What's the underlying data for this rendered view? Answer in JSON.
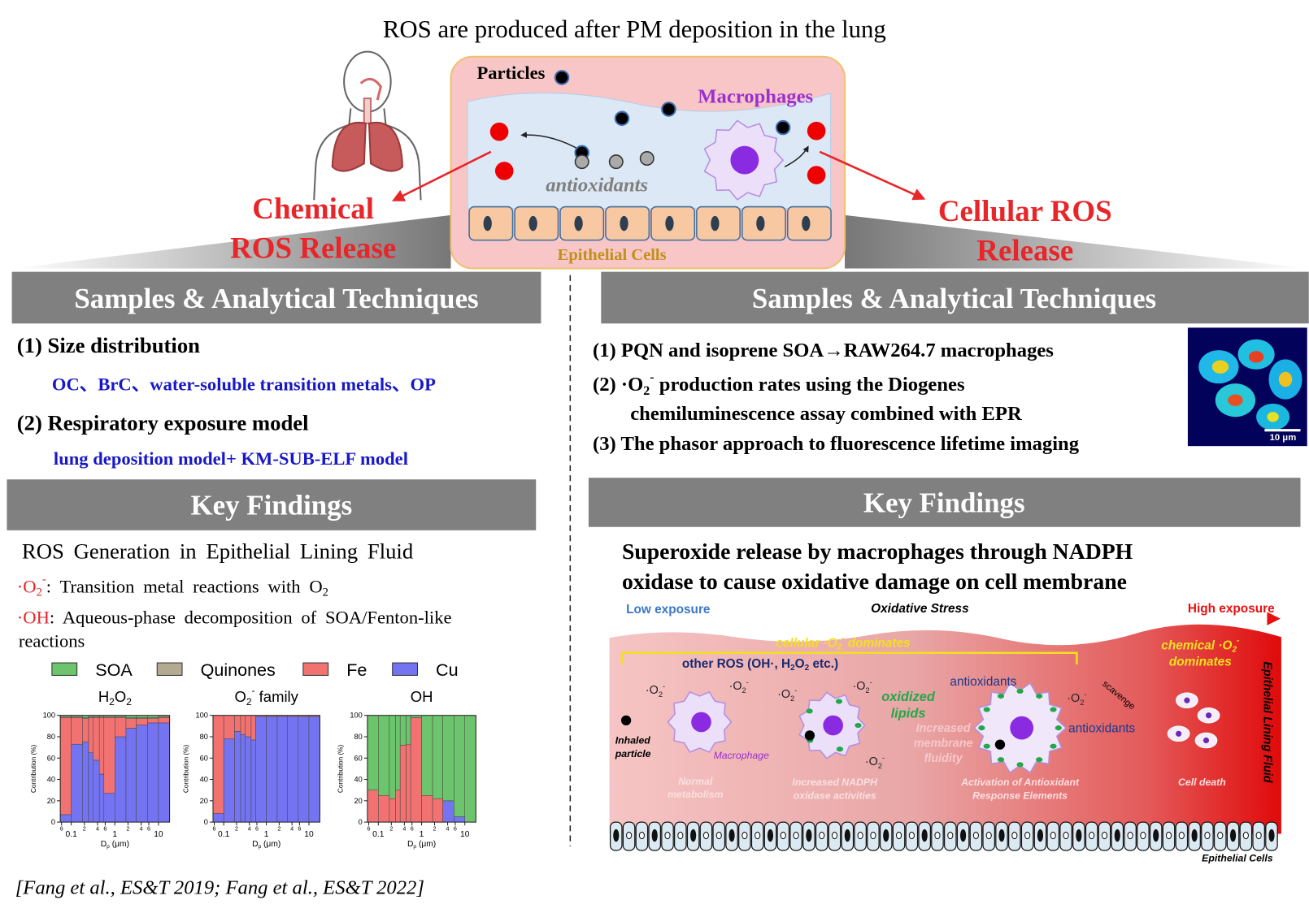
{
  "title": "ROS are produced after PM deposition in the lung",
  "schematic": {
    "particles": "Particles",
    "macrophages": "Macrophages",
    "antioxidants": "antioxidants",
    "epithelial_cells": "Epithelial Cells"
  },
  "chemical_release": [
    "Chemical",
    "ROS Release"
  ],
  "cellular_release": [
    "Cellular ROS",
    "Release"
  ],
  "left": {
    "methods_heading": "Samples & Analytical Techniques",
    "methods": [
      {
        "label": "(1) Size distribution",
        "detail": "OC、BrC、water-soluble transition metals、OP"
      },
      {
        "label": "(2) Respiratory exposure model",
        "detail": "lung deposition model+  KM-SUB-ELF model"
      }
    ],
    "findings_heading": "Key Findings",
    "findings_title": "ROS Generation in Epithelial Lining Fluid",
    "findings": [
      [
        {
          "t": "·O",
          "color": "#e8262a"
        },
        {
          "sub": "2",
          "color": "#e8262a"
        },
        {
          "sup": "-",
          "color": "#e8262a"
        },
        {
          "t": ": Transition metal reactions with O"
        },
        {
          "sub": "2"
        }
      ],
      [
        {
          "t": "·OH",
          "color": "#e8262a"
        },
        {
          "t": ": Aqueous-phase decomposition of SOA/Fenton-like"
        }
      ],
      [
        {
          "t": "reactions"
        }
      ]
    ],
    "chart": {
      "legend": [
        {
          "name": "SOA",
          "color": "#6cc46c"
        },
        {
          "name": "Quinones",
          "color": "#b3aa92"
        },
        {
          "name": "Fe",
          "color": "#f27272"
        },
        {
          "name": "Cu",
          "color": "#7474f2"
        }
      ],
      "panels": [
        {
          "type": "bar",
          "title": [
            {
              "t": "H"
            },
            {
              "sub": "2"
            },
            {
              "t": "O"
            },
            {
              "sub": "2"
            }
          ],
          "ylabel": "Contribution (%)",
          "xlabel": [
            {
              "t": "D"
            },
            {
              "sub": "p"
            },
            {
              "t": " (μm)"
            }
          ],
          "xscale": "log",
          "xlim": [
            0.056,
            18
          ],
          "ylim": [
            0,
            100
          ],
          "yticks": [
            0,
            20,
            40,
            60,
            80,
            100
          ],
          "xticks": [
            {
              "value": 0.06,
              "label": "6"
            },
            0.1,
            {
              "value": 0.2,
              "label": "2"
            },
            {
              "value": 0.4,
              "label": "4"
            },
            {
              "value": 0.6,
              "label": "6"
            },
            1,
            {
              "value": 2,
              "label": "2"
            },
            {
              "value": 4,
              "label": "4"
            },
            {
              "value": 6,
              "label": "6"
            },
            10
          ],
          "bins": [
            0.056,
            0.1,
            0.18,
            0.25,
            0.32,
            0.44,
            0.56,
            1.0,
            1.8,
            3.1,
            5.6,
            10,
            18
          ],
          "values": [
            [
              1,
              1,
              2,
              1,
              1,
              1,
              1,
              1,
              2,
              2,
              2,
              1
            ],
            [
              1,
              1,
              1,
              1,
              1,
              1,
              1,
              1,
              1,
              1,
              1,
              1
            ],
            [
              91,
              25,
              22,
              33,
              40,
              53,
              71,
              18,
              9,
              6,
              4,
              5
            ],
            [
              7,
              73,
              75,
              65,
              58,
              45,
              27,
              80,
              88,
              91,
              93,
              93
            ]
          ]
        },
        {
          "type": "bar",
          "title": [
            {
              "t": "O"
            },
            {
              "sub": "2"
            },
            {
              "sup": "-"
            },
            {
              "t": " family"
            }
          ],
          "ylabel": "Contribution (%)",
          "xlabel": [
            {
              "t": "D"
            },
            {
              "sub": "p"
            },
            {
              "t": " (μm)"
            }
          ],
          "xscale": "log",
          "xlim": [
            0.056,
            18
          ],
          "ylim": [
            0,
            100
          ],
          "yticks": [
            0,
            20,
            40,
            60,
            80,
            100
          ],
          "xticks": [
            {
              "value": 0.06,
              "label": "6"
            },
            0.1,
            {
              "value": 0.2,
              "label": "2"
            },
            {
              "value": 0.4,
              "label": "4"
            },
            {
              "value": 0.6,
              "label": "6"
            },
            1,
            {
              "value": 2,
              "label": "2"
            },
            {
              "value": 4,
              "label": "4"
            },
            {
              "value": 6,
              "label": "6"
            },
            10
          ],
          "bins": [
            0.056,
            0.1,
            0.18,
            0.25,
            0.32,
            0.44,
            0.56,
            1.0,
            1.8,
            3.1,
            5.6,
            10,
            18
          ],
          "values": [
            [
              0,
              0,
              0,
              0,
              0,
              0,
              0,
              0,
              0,
              0,
              0,
              0
            ],
            [
              0,
              0,
              0,
              0,
              0,
              0,
              0,
              0,
              0,
              0,
              0,
              0
            ],
            [
              92,
              22,
              15,
              18,
              20,
              23,
              1,
              1,
              1,
              1,
              1,
              1
            ],
            [
              8,
              78,
              85,
              82,
              80,
              77,
              99,
              99,
              99,
              99,
              99,
              99
            ]
          ]
        },
        {
          "type": "bar",
          "title": [
            {
              "t": "OH"
            }
          ],
          "ylabel": "Contribution (%)",
          "xlabel": [
            {
              "t": "D"
            },
            {
              "sub": "p"
            },
            {
              "t": " (μm)"
            }
          ],
          "xscale": "log",
          "xlim": [
            0.056,
            18
          ],
          "ylim": [
            0,
            100
          ],
          "yticks": [
            0,
            20,
            40,
            60,
            80,
            100
          ],
          "xticks": [
            {
              "value": 0.06,
              "label": "6"
            },
            0.1,
            {
              "value": 0.2,
              "label": "2"
            },
            {
              "value": 0.4,
              "label": "4"
            },
            {
              "value": 0.6,
              "label": "6"
            },
            1,
            {
              "value": 2,
              "label": "2"
            },
            {
              "value": 4,
              "label": "4"
            },
            {
              "value": 6,
              "label": "6"
            },
            10
          ],
          "bins": [
            0.056,
            0.1,
            0.18,
            0.25,
            0.32,
            0.44,
            0.56,
            1.0,
            1.8,
            3.1,
            5.6,
            10,
            18
          ],
          "values": [
            [
              70,
              75,
              78,
              70,
              28,
              27,
              2,
              75,
              78,
              80,
              95,
              100
            ],
            [
              0,
              0,
              0,
              0,
              0,
              0,
              0,
              0,
              0,
              0,
              0,
              0
            ],
            [
              30,
              25,
              22,
              30,
              72,
              73,
              98,
              25,
              22,
              0,
              0,
              0
            ],
            [
              0,
              0,
              0,
              0,
              0,
              0,
              0,
              0,
              0,
              20,
              5,
              0
            ]
          ]
        }
      ]
    },
    "citation": "[Fang et al., ES&T 2019; Fang et al., ES&T 2022]"
  },
  "right": {
    "methods_heading": "Samples & Analytical Techniques",
    "methods": [
      [
        {
          "t": "(1) PQN and isoprene SOA→RAW264.7 macrophages"
        }
      ],
      [
        {
          "t": "(2) ·O"
        },
        {
          "sub": "2"
        },
        {
          "sup": "-"
        },
        {
          "t": " production rates using  the Diogenes"
        }
      ],
      [
        {
          "t": "chemiluminescence assay combined with EPR"
        }
      ],
      [
        {
          "t": "(3) The phasor approach to fluorescence lifetime imaging"
        }
      ]
    ],
    "image_scale": "10 μm",
    "findings_heading": "Key Findings",
    "findings_title": [
      "Superoxide release by macrophages through NADPH",
      "oxidase to cause oxidative damage on cell membrane"
    ],
    "diagram": {
      "low": "Low exposure",
      "stress": "Oxidative Stress",
      "high": "High exposure",
      "cellular_dominates": [
        {
          "t": "cellular ·O"
        },
        {
          "sub": "2"
        },
        {
          "sup": "-"
        },
        {
          "t": " dominates"
        }
      ],
      "chemical_dominates": [
        {
          "t": "chemical ·O"
        },
        {
          "sub": "2"
        },
        {
          "sup": "-"
        }
      ],
      "chemical_dominates_2": "dominates",
      "other_ros": [
        {
          "t": "other ROS (OH·, H"
        },
        {
          "sub": "2"
        },
        {
          "t": "O"
        },
        {
          "sub": "2"
        },
        {
          "t": " etc.)"
        }
      ],
      "superoxide": [
        [
          {
            "t": "·O"
          },
          {
            "sub": "2"
          },
          {
            "sup": "-"
          }
        ],
        [
          {
            "t": "·O"
          },
          {
            "sub": "2"
          },
          {
            "sup": "-"
          }
        ],
        [
          {
            "t": "·O"
          },
          {
            "sub": "2"
          },
          {
            "sup": "-"
          }
        ],
        [
          {
            "t": "·O"
          },
          {
            "sub": "2"
          },
          {
            "sup": "-"
          }
        ],
        [
          {
            "t": "·O"
          },
          {
            "sub": "2"
          },
          {
            "sup": "-"
          }
        ],
        [
          {
            "t": "·O"
          },
          {
            "sub": "2"
          },
          {
            "sup": "-"
          }
        ]
      ],
      "inhaled_particle": [
        "Inhaled",
        "particle"
      ],
      "macrophage": "Macrophage",
      "normal": [
        "Normal",
        "metabolism"
      ],
      "oxidized_lipids": [
        "oxidized",
        "lipids"
      ],
      "membrane": [
        "Increased",
        "membrane",
        "fluidity"
      ],
      "nadph": [
        "Increased NADPH",
        "oxidase activities"
      ],
      "antioxidants": [
        "antioxidants",
        "antioxidants"
      ],
      "scavenge": "scavenge",
      "are": [
        "Activation of Antioxidant",
        "Response Elements"
      ],
      "cell_death": "Cell death",
      "elf": "Epithelial Lining Fluid",
      "epithelial_cells": "Epithelial Cells"
    }
  }
}
